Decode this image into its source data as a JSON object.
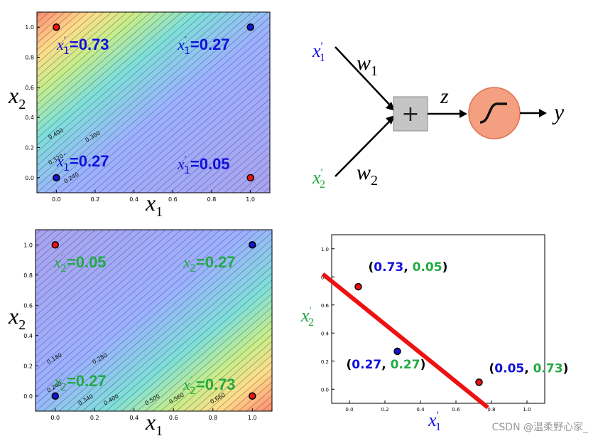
{
  "plots": [
    {
      "id": "top",
      "ticks_x": [
        "0.0",
        "0.2",
        "0.4",
        "0.6",
        "0.8",
        "1.0"
      ],
      "ticks_y": [
        "0.0",
        "0.2",
        "0.4",
        "0.6",
        "0.8",
        "1.0"
      ],
      "contour_labels": [
        "0.400",
        "0.300",
        "0.320",
        "0.240"
      ],
      "annotations": [
        {
          "sym": "x",
          "sub": "1",
          "value": "0.73"
        },
        {
          "sym": "x",
          "sub": "1",
          "value": "0.27"
        },
        {
          "sym": "x",
          "sub": "1",
          "value": "0.27"
        },
        {
          "sym": "x",
          "sub": "1",
          "value": "0.05"
        }
      ],
      "ann_color": "#1010dd",
      "xlabel": {
        "sym": "x",
        "sub": "1"
      },
      "ylabel": {
        "sym": "x",
        "sub": "2"
      }
    },
    {
      "id": "bottom",
      "ticks_x": [
        "0.0",
        "0.2",
        "0.4",
        "0.6",
        "0.8",
        "1.0"
      ],
      "ticks_y": [
        "0.0",
        "0.2",
        "0.4",
        "0.6",
        "0.8",
        "1.0"
      ],
      "contour_labels": [
        "0.180",
        "0.280",
        "0.240",
        "0.340",
        "0.400",
        "0.500",
        "0.560",
        "0.660"
      ],
      "annotations": [
        {
          "sym": "x",
          "sub": "2",
          "value": "0.05"
        },
        {
          "sym": "x",
          "sub": "2",
          "value": "0.27"
        },
        {
          "sym": "x",
          "sub": "2",
          "value": "0.27"
        },
        {
          "sym": "x",
          "sub": "2",
          "value": "0.73"
        }
      ],
      "ann_color": "#22aa44",
      "xlabel": {
        "sym": "x",
        "sub": "1"
      },
      "ylabel": {
        "sym": "x",
        "sub": "2"
      }
    }
  ],
  "points": [
    {
      "x": 0,
      "y": 1,
      "class": "red"
    },
    {
      "x": 1,
      "y": 1,
      "class": "blue"
    },
    {
      "x": 0,
      "y": 0,
      "class": "blue"
    },
    {
      "x": 1,
      "y": 0,
      "class": "red"
    }
  ],
  "neuron": {
    "input1": {
      "sym": "x",
      "sub": "1",
      "color": "#1010dd"
    },
    "input2": {
      "sym": "x",
      "sub": "2",
      "color": "#22aa44"
    },
    "w1": {
      "sym": "w",
      "sub": "1"
    },
    "w2": {
      "sym": "w",
      "sub": "2"
    },
    "sum_symbol": "+",
    "z_label": "z",
    "output_label": "y"
  },
  "chart_data": {
    "type": "scatter",
    "x_ticks": [
      "0.0",
      "0.2",
      "0.4",
      "0.6",
      "0.8",
      "1.0"
    ],
    "y_ticks": [
      "0.0",
      "0.2",
      "0.4",
      "0.6",
      "0.8",
      "1.0"
    ],
    "xlim": [
      -0.1,
      1.1
    ],
    "ylim": [
      -0.1,
      1.1
    ],
    "points": [
      {
        "x": 0.05,
        "y": 0.73,
        "class": "red",
        "label_x": "0.73",
        "label_y": "0.05"
      },
      {
        "x": 0.27,
        "y": 0.27,
        "class": "blue",
        "label_x": "0.27",
        "label_y": "0.27"
      },
      {
        "x": 0.73,
        "y": 0.05,
        "class": "red",
        "label_x": "0.05",
        "label_y": "0.73"
      }
    ],
    "decision_line": {
      "x1": -0.15,
      "y1": 0.82,
      "x2": 0.78,
      "y2": -0.13,
      "color": "#ee1111"
    },
    "xlabel": {
      "sym": "x",
      "sub": "1",
      "color": "#1010dd"
    },
    "ylabel": {
      "sym": "x",
      "sub": "2",
      "color": "#22aa44"
    },
    "colors": {
      "red": "#ee1111",
      "blue": "#1515cc",
      "x1": "#1010dd",
      "x2": "#22aa44"
    }
  },
  "watermark": "CSDN @温柔野心家_"
}
